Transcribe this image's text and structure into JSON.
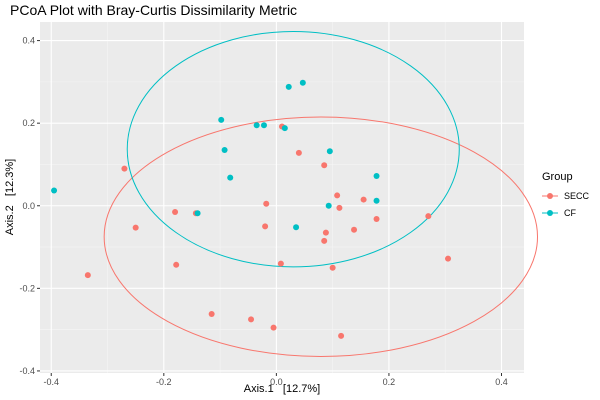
{
  "chart_data": {
    "type": "scatter",
    "title": "PCoA Plot with Bray-Curtis Dissimilarity Metric",
    "xlabel": "Axis.1   [12.7%]",
    "ylabel": "Axis.2   [12.3%]",
    "xlim": [
      -0.42,
      0.44
    ],
    "ylim": [
      -0.405,
      0.445
    ],
    "x_ticks": [
      -0.4,
      -0.2,
      0.0,
      0.2,
      0.4
    ],
    "x_tick_labels": [
      "-0.4",
      "-0.2",
      "0.0",
      "0.2",
      "0.4"
    ],
    "y_ticks": [
      -0.4,
      -0.2,
      0.0,
      0.2,
      0.4
    ],
    "y_tick_labels": [
      "-0.4",
      "-0.2",
      "0.0",
      "0.2",
      "0.4"
    ],
    "grid": true,
    "legend": {
      "title": "Group",
      "position": "right"
    },
    "series": [
      {
        "name": "SECC",
        "color": "#F8766D",
        "points": [
          [
            -0.27,
            0.09
          ],
          [
            -0.335,
            -0.168
          ],
          [
            -0.25,
            -0.053
          ],
          [
            -0.18,
            -0.015
          ],
          [
            -0.178,
            -0.143
          ],
          [
            -0.143,
            -0.018
          ],
          [
            -0.115,
            -0.262
          ],
          [
            -0.045,
            -0.275
          ],
          [
            -0.018,
            0.005
          ],
          [
            -0.02,
            -0.05
          ],
          [
            -0.005,
            -0.295
          ],
          [
            0.008,
            -0.14
          ],
          [
            0.01,
            0.192
          ],
          [
            0.04,
            0.128
          ],
          [
            0.085,
            0.098
          ],
          [
            0.085,
            -0.085
          ],
          [
            0.088,
            -0.065
          ],
          [
            0.1,
            -0.15
          ],
          [
            0.108,
            0.025
          ],
          [
            0.112,
            -0.005
          ],
          [
            0.115,
            -0.315
          ],
          [
            0.138,
            -0.058
          ],
          [
            0.155,
            0.015
          ],
          [
            0.178,
            -0.032
          ],
          [
            0.27,
            -0.025
          ],
          [
            0.305,
            -0.128
          ]
        ],
        "ellipse": {
          "cx": 0.079,
          "cy": -0.075,
          "rx": 0.385,
          "ry": 0.29
        }
      },
      {
        "name": "CF",
        "color": "#00BFC4",
        "points": [
          [
            -0.395,
            0.037
          ],
          [
            -0.14,
            -0.018
          ],
          [
            -0.098,
            0.208
          ],
          [
            -0.092,
            0.135
          ],
          [
            -0.082,
            0.068
          ],
          [
            -0.035,
            0.195
          ],
          [
            -0.022,
            0.195
          ],
          [
            0.015,
            0.188
          ],
          [
            0.022,
            0.288
          ],
          [
            0.035,
            -0.052
          ],
          [
            0.047,
            0.298
          ],
          [
            0.093,
            -0.0
          ],
          [
            0.095,
            0.132
          ],
          [
            0.178,
            0.072
          ],
          [
            0.178,
            0.012
          ]
        ],
        "ellipse": {
          "cx": 0.03,
          "cy": 0.137,
          "rx": 0.295,
          "ry": 0.285
        }
      }
    ]
  }
}
